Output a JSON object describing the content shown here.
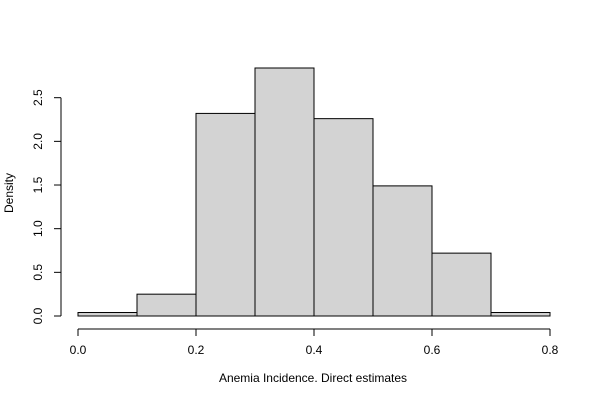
{
  "chart_data": {
    "type": "bar",
    "subtype": "histogram",
    "title": "",
    "xlabel": "Anemia Incidence. Direct estimates",
    "ylabel": "Density",
    "bins": [
      {
        "from": 0.0,
        "to": 0.1,
        "density": 0.04
      },
      {
        "from": 0.1,
        "to": 0.2,
        "density": 0.25
      },
      {
        "from": 0.2,
        "to": 0.3,
        "density": 2.32
      },
      {
        "from": 0.3,
        "to": 0.4,
        "density": 2.84
      },
      {
        "from": 0.4,
        "to": 0.5,
        "density": 2.26
      },
      {
        "from": 0.5,
        "to": 0.6,
        "density": 1.49
      },
      {
        "from": 0.6,
        "to": 0.7,
        "density": 0.72
      },
      {
        "from": 0.7,
        "to": 0.8,
        "density": 0.04
      }
    ],
    "xlim": [
      0.0,
      0.8
    ],
    "ylim": [
      0.0,
      2.84
    ],
    "x_ticks": [
      0.0,
      0.2,
      0.4,
      0.6,
      0.8
    ],
    "x_tick_labels": [
      "0.0",
      "0.2",
      "0.4",
      "0.6",
      "0.8"
    ],
    "y_ticks": [
      0.0,
      0.5,
      1.0,
      1.5,
      2.0,
      2.5
    ],
    "y_tick_labels": [
      "0.0",
      "0.5",
      "1.0",
      "1.5",
      "2.0",
      "2.5"
    ],
    "bar_fill": "#d3d3d3",
    "bar_stroke": "#000000",
    "grid": false
  }
}
